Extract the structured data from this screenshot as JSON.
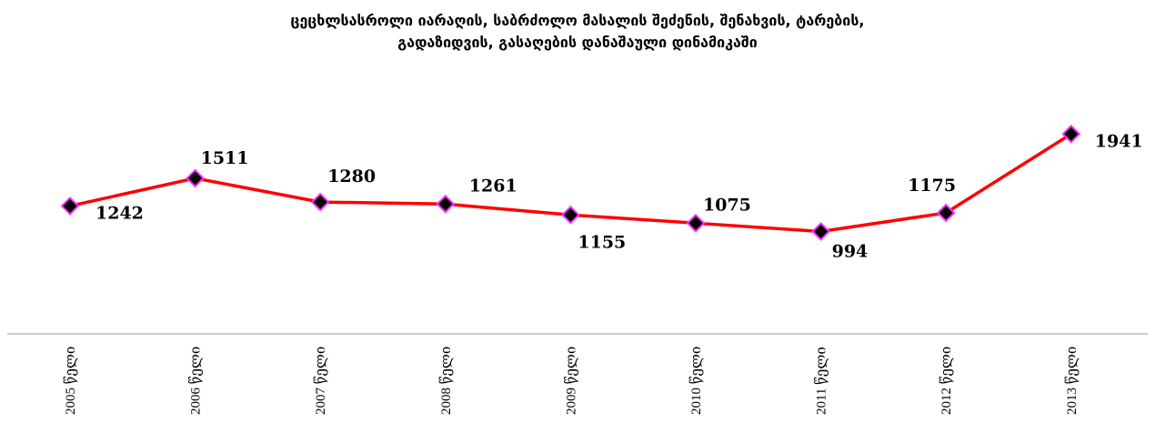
{
  "chart_data": {
    "type": "line",
    "title": [
      "ცეცხლსასროლი იარაღის, საბრძოლო მასალის შეძენის,  შენახვის,  ტარების,",
      "გადაზიდვის,  გასაღების დანაშაული დინამიკაში"
    ],
    "categories": [
      "2005 წელი",
      "2006 წელი",
      "2007 წელი",
      "2008 წელი",
      "2009 წელი",
      "2010 წელი",
      "2011 წელი",
      "2012 წელი",
      "2013 წელი"
    ],
    "series": [
      {
        "name": "დანაშაული",
        "color": "#ff0000",
        "marker_color": "#000000",
        "marker_edge": "#ff33ff",
        "values": [
          1242,
          1511,
          1280,
          1261,
          1155,
          1075,
          994,
          1175,
          1941
        ]
      }
    ],
    "ylim": [
      0,
      2500
    ]
  }
}
